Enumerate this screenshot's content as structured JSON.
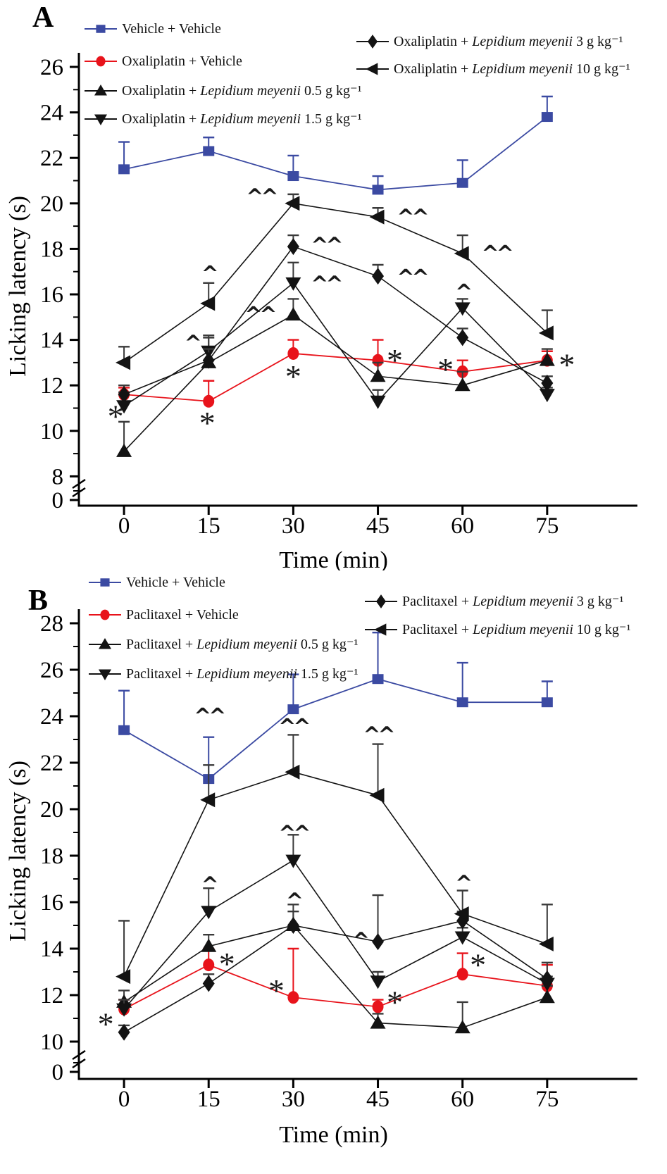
{
  "figure": {
    "background": "#ffffff",
    "colors": {
      "vehicle_blue": "#3b4aa2",
      "chemo_red": "#e8131b",
      "treatment_black": "#131313"
    },
    "significance_symbols": {
      "vs_vehicle": "*",
      "vs_chemo_p05": "^",
      "vs_chemo_p01": "^^"
    }
  },
  "chart_data": [
    {
      "type": "line",
      "panel_label": "A",
      "xlabel": "Time (min)",
      "ylabel": "Licking latency (s)",
      "x": [
        0,
        15,
        30,
        45,
        60,
        75
      ],
      "xlim": [
        -8,
        91
      ],
      "ylim": [
        8,
        26
      ],
      "y_ticks": [
        8,
        10,
        12,
        14,
        16,
        18,
        20,
        22,
        24,
        26
      ],
      "y_break_zero_label": "0",
      "grid": false,
      "legend_position": "top-inside",
      "series": [
        {
          "name": "Vehicle + Vehicle",
          "label_parts": [
            {
              "t": "Vehicle + Vehicle"
            }
          ],
          "marker": "square",
          "color": "#3b4aa2",
          "values": [
            21.5,
            22.3,
            21.2,
            20.6,
            20.9,
            23.8
          ],
          "err": [
            1.2,
            0.6,
            0.9,
            0.6,
            1.0,
            0.9
          ]
        },
        {
          "name": "Oxaliplatin + Vehicle",
          "label_parts": [
            {
              "t": "Oxaliplatin + Vehicle"
            }
          ],
          "marker": "circle",
          "color": "#e8131b",
          "values": [
            11.6,
            11.3,
            13.4,
            13.1,
            12.6,
            13.1
          ],
          "err": [
            0.3,
            0.9,
            0.6,
            0.9,
            0.5,
            0.4
          ]
        },
        {
          "name": "Oxaliplatin + Lepidium meyenii 0.5 g kg⁻¹",
          "label_parts": [
            {
              "t": "Oxaliplatin + "
            },
            {
              "t": "Lepidium meyenii",
              "i": true
            },
            {
              "t": " 0.5 g kg⁻¹"
            }
          ],
          "marker": "triangle-up",
          "color": "#131313",
          "values": [
            9.1,
            13.0,
            15.1,
            12.4,
            12.0,
            13.1
          ],
          "err": [
            1.3,
            1.1,
            0.7,
            0.6,
            0.6,
            0.5
          ]
        },
        {
          "name": "Oxaliplatin + Lepidium meyenii 1.5 g kg⁻¹",
          "label_parts": [
            {
              "t": "Oxaliplatin + "
            },
            {
              "t": "Lepidium meyenii",
              "i": true
            },
            {
              "t": " 1.5 g kg⁻¹"
            }
          ],
          "marker": "triangle-down",
          "color": "#131313",
          "values": [
            11.1,
            13.5,
            16.5,
            11.3,
            15.4,
            11.6
          ],
          "err": [
            0.6,
            0.7,
            0.9,
            0.5,
            0.4,
            0.3
          ]
        },
        {
          "name": "Oxaliplatin + Lepidium meyenii 3 g kg⁻¹",
          "label_parts": [
            {
              "t": "Oxaliplatin + "
            },
            {
              "t": "Lepidium meyenii",
              "i": true
            },
            {
              "t": " 3 g kg⁻¹"
            }
          ],
          "marker": "diamond",
          "color": "#131313",
          "values": [
            11.6,
            13.1,
            18.1,
            16.8,
            14.1,
            12.1
          ],
          "err": [
            0.4,
            0.5,
            0.5,
            0.5,
            0.4,
            0.3
          ]
        },
        {
          "name": "Oxaliplatin + Lepidium meyenii 10 g kg⁻¹",
          "label_parts": [
            {
              "t": "Oxaliplatin + "
            },
            {
              "t": "Lepidium meyenii",
              "i": true
            },
            {
              "t": " 10 g kg⁻¹"
            }
          ],
          "marker": "triangle-left",
          "color": "#131313",
          "values": [
            13.0,
            15.6,
            20.0,
            19.4,
            17.8,
            14.3
          ],
          "err": [
            0.7,
            0.9,
            0.4,
            0.4,
            0.8,
            1.0
          ]
        }
      ],
      "annotations": [
        {
          "x": 0,
          "y": 10.85,
          "t": "*",
          "dx": -12
        },
        {
          "x": 15,
          "y": 10.55,
          "t": "*",
          "dx": -2
        },
        {
          "x": 30,
          "y": 12.6,
          "t": "*",
          "dx": 0
        },
        {
          "x": 45,
          "y": 13.3,
          "t": "*",
          "dx": 24
        },
        {
          "x": 60,
          "y": 12.9,
          "t": "*",
          "dx": -24
        },
        {
          "x": 75,
          "y": 13.1,
          "t": "*",
          "dx": 28
        },
        {
          "x": 15,
          "y": 17.05,
          "t": "^",
          "dx": 0
        },
        {
          "x": 15,
          "y": 14.0,
          "t": "^",
          "dx": -24
        },
        {
          "x": 30,
          "y": 20.45,
          "t": "^^",
          "dx": -46
        },
        {
          "x": 30,
          "y": 18.3,
          "t": "^^",
          "dx": 46
        },
        {
          "x": 30,
          "y": 16.6,
          "t": "^^",
          "dx": 46
        },
        {
          "x": 30,
          "y": 15.25,
          "t": "^^",
          "dx": -48
        },
        {
          "x": 45,
          "y": 19.55,
          "t": "^^",
          "dx": 48
        },
        {
          "x": 45,
          "y": 16.9,
          "t": "^^",
          "dx": 48
        },
        {
          "x": 60,
          "y": 17.95,
          "t": "^^",
          "dx": 48
        },
        {
          "x": 60,
          "y": 16.25,
          "t": "^",
          "dx": 0
        }
      ]
    },
    {
      "type": "line",
      "panel_label": "B",
      "xlabel": "Time (min)",
      "ylabel": "Licking latency (s)",
      "x": [
        0,
        15,
        30,
        45,
        60,
        75
      ],
      "xlim": [
        -8,
        91
      ],
      "ylim": [
        10,
        28
      ],
      "y_ticks": [
        10,
        12,
        14,
        16,
        18,
        20,
        22,
        24,
        26,
        28
      ],
      "y_break_zero_label": "0",
      "grid": false,
      "legend_position": "top-inside",
      "series": [
        {
          "name": "Vehicle + Vehicle",
          "label_parts": [
            {
              "t": "Vehicle + Vehicle"
            }
          ],
          "marker": "square",
          "color": "#3b4aa2",
          "values": [
            23.4,
            21.3,
            24.3,
            25.6,
            24.6,
            24.6
          ],
          "err": [
            1.7,
            1.8,
            1.5,
            2.0,
            1.7,
            0.9
          ]
        },
        {
          "name": "Paclitaxel + Vehicle",
          "label_parts": [
            {
              "t": "Paclitaxel + Vehicle"
            }
          ],
          "marker": "circle",
          "color": "#e8131b",
          "values": [
            11.4,
            13.3,
            11.9,
            11.5,
            12.9,
            12.4
          ],
          "err": [
            0.4,
            0.7,
            2.1,
            0.3,
            0.9,
            0.9
          ]
        },
        {
          "name": "Paclitaxel + Lepidium meyenii 0.5 g kg⁻¹",
          "label_parts": [
            {
              "t": "Paclitaxel + "
            },
            {
              "t": "Lepidium meyenii",
              "i": true
            },
            {
              "t": " 0.5 g kg⁻¹"
            }
          ],
          "marker": "triangle-up",
          "color": "#131313",
          "values": [
            11.7,
            14.1,
            15.0,
            10.8,
            10.6,
            11.9
          ],
          "err": [
            0.5,
            0.5,
            0.6,
            0.4,
            1.1,
            0.5
          ]
        },
        {
          "name": "Paclitaxel + Lepidium meyenii 1.5 g kg⁻¹",
          "label_parts": [
            {
              "t": "Paclitaxel + "
            },
            {
              "t": "Lepidium meyenii",
              "i": true
            },
            {
              "t": " 1.5 g kg⁻¹"
            }
          ],
          "marker": "triangle-down",
          "color": "#131313",
          "values": [
            11.4,
            15.6,
            17.8,
            12.6,
            14.5,
            12.5
          ],
          "err": [
            0.4,
            1.0,
            1.1,
            0.4,
            0.4,
            0.3
          ]
        },
        {
          "name": "Paclitaxel + Lepidium meyenii 3 g kg⁻¹",
          "label_parts": [
            {
              "t": "Paclitaxel + "
            },
            {
              "t": "Lepidium meyenii",
              "i": true
            },
            {
              "t": " 3 g kg⁻¹"
            }
          ],
          "marker": "diamond",
          "color": "#131313",
          "values": [
            10.4,
            12.5,
            15.0,
            14.3,
            15.2,
            12.7
          ],
          "err": [
            0.3,
            0.4,
            0.9,
            2.0,
            0.4,
            0.7
          ]
        },
        {
          "name": "Paclitaxel + Lepidium meyenii 10 g kg⁻¹",
          "label_parts": [
            {
              "t": "Paclitaxel + "
            },
            {
              "t": "Lepidium meyenii",
              "i": true
            },
            {
              "t": " 10 g kg⁻¹"
            }
          ],
          "marker": "triangle-left",
          "color": "#131313",
          "values": [
            12.8,
            20.4,
            21.6,
            20.6,
            15.5,
            14.2
          ],
          "err": [
            2.4,
            1.5,
            1.6,
            2.2,
            1.0,
            1.7
          ]
        }
      ],
      "annotations": [
        {
          "x": 0,
          "y": 10.95,
          "t": "*",
          "dx": -26
        },
        {
          "x": 15,
          "y": 13.55,
          "t": "*",
          "dx": 26
        },
        {
          "x": 30,
          "y": 12.4,
          "t": "*",
          "dx": -24
        },
        {
          "x": 45,
          "y": 11.9,
          "t": "*",
          "dx": 24
        },
        {
          "x": 60,
          "y": 13.5,
          "t": "*",
          "dx": 22
        },
        {
          "x": 15,
          "y": 24.15,
          "t": "^^",
          "dx": 0
        },
        {
          "x": 30,
          "y": 23.7,
          "t": "^^",
          "dx": 0
        },
        {
          "x": 45,
          "y": 23.35,
          "t": "^^",
          "dx": 0
        },
        {
          "x": 30,
          "y": 19.1,
          "t": "^^",
          "dx": 0
        },
        {
          "x": 15,
          "y": 16.9,
          "t": "^",
          "dx": 0
        },
        {
          "x": 30,
          "y": 16.2,
          "t": "^",
          "dx": 0
        },
        {
          "x": 45,
          "y": 14.5,
          "t": "^",
          "dx": -26
        },
        {
          "x": 60,
          "y": 16.95,
          "t": "^",
          "dx": 0
        }
      ]
    }
  ]
}
